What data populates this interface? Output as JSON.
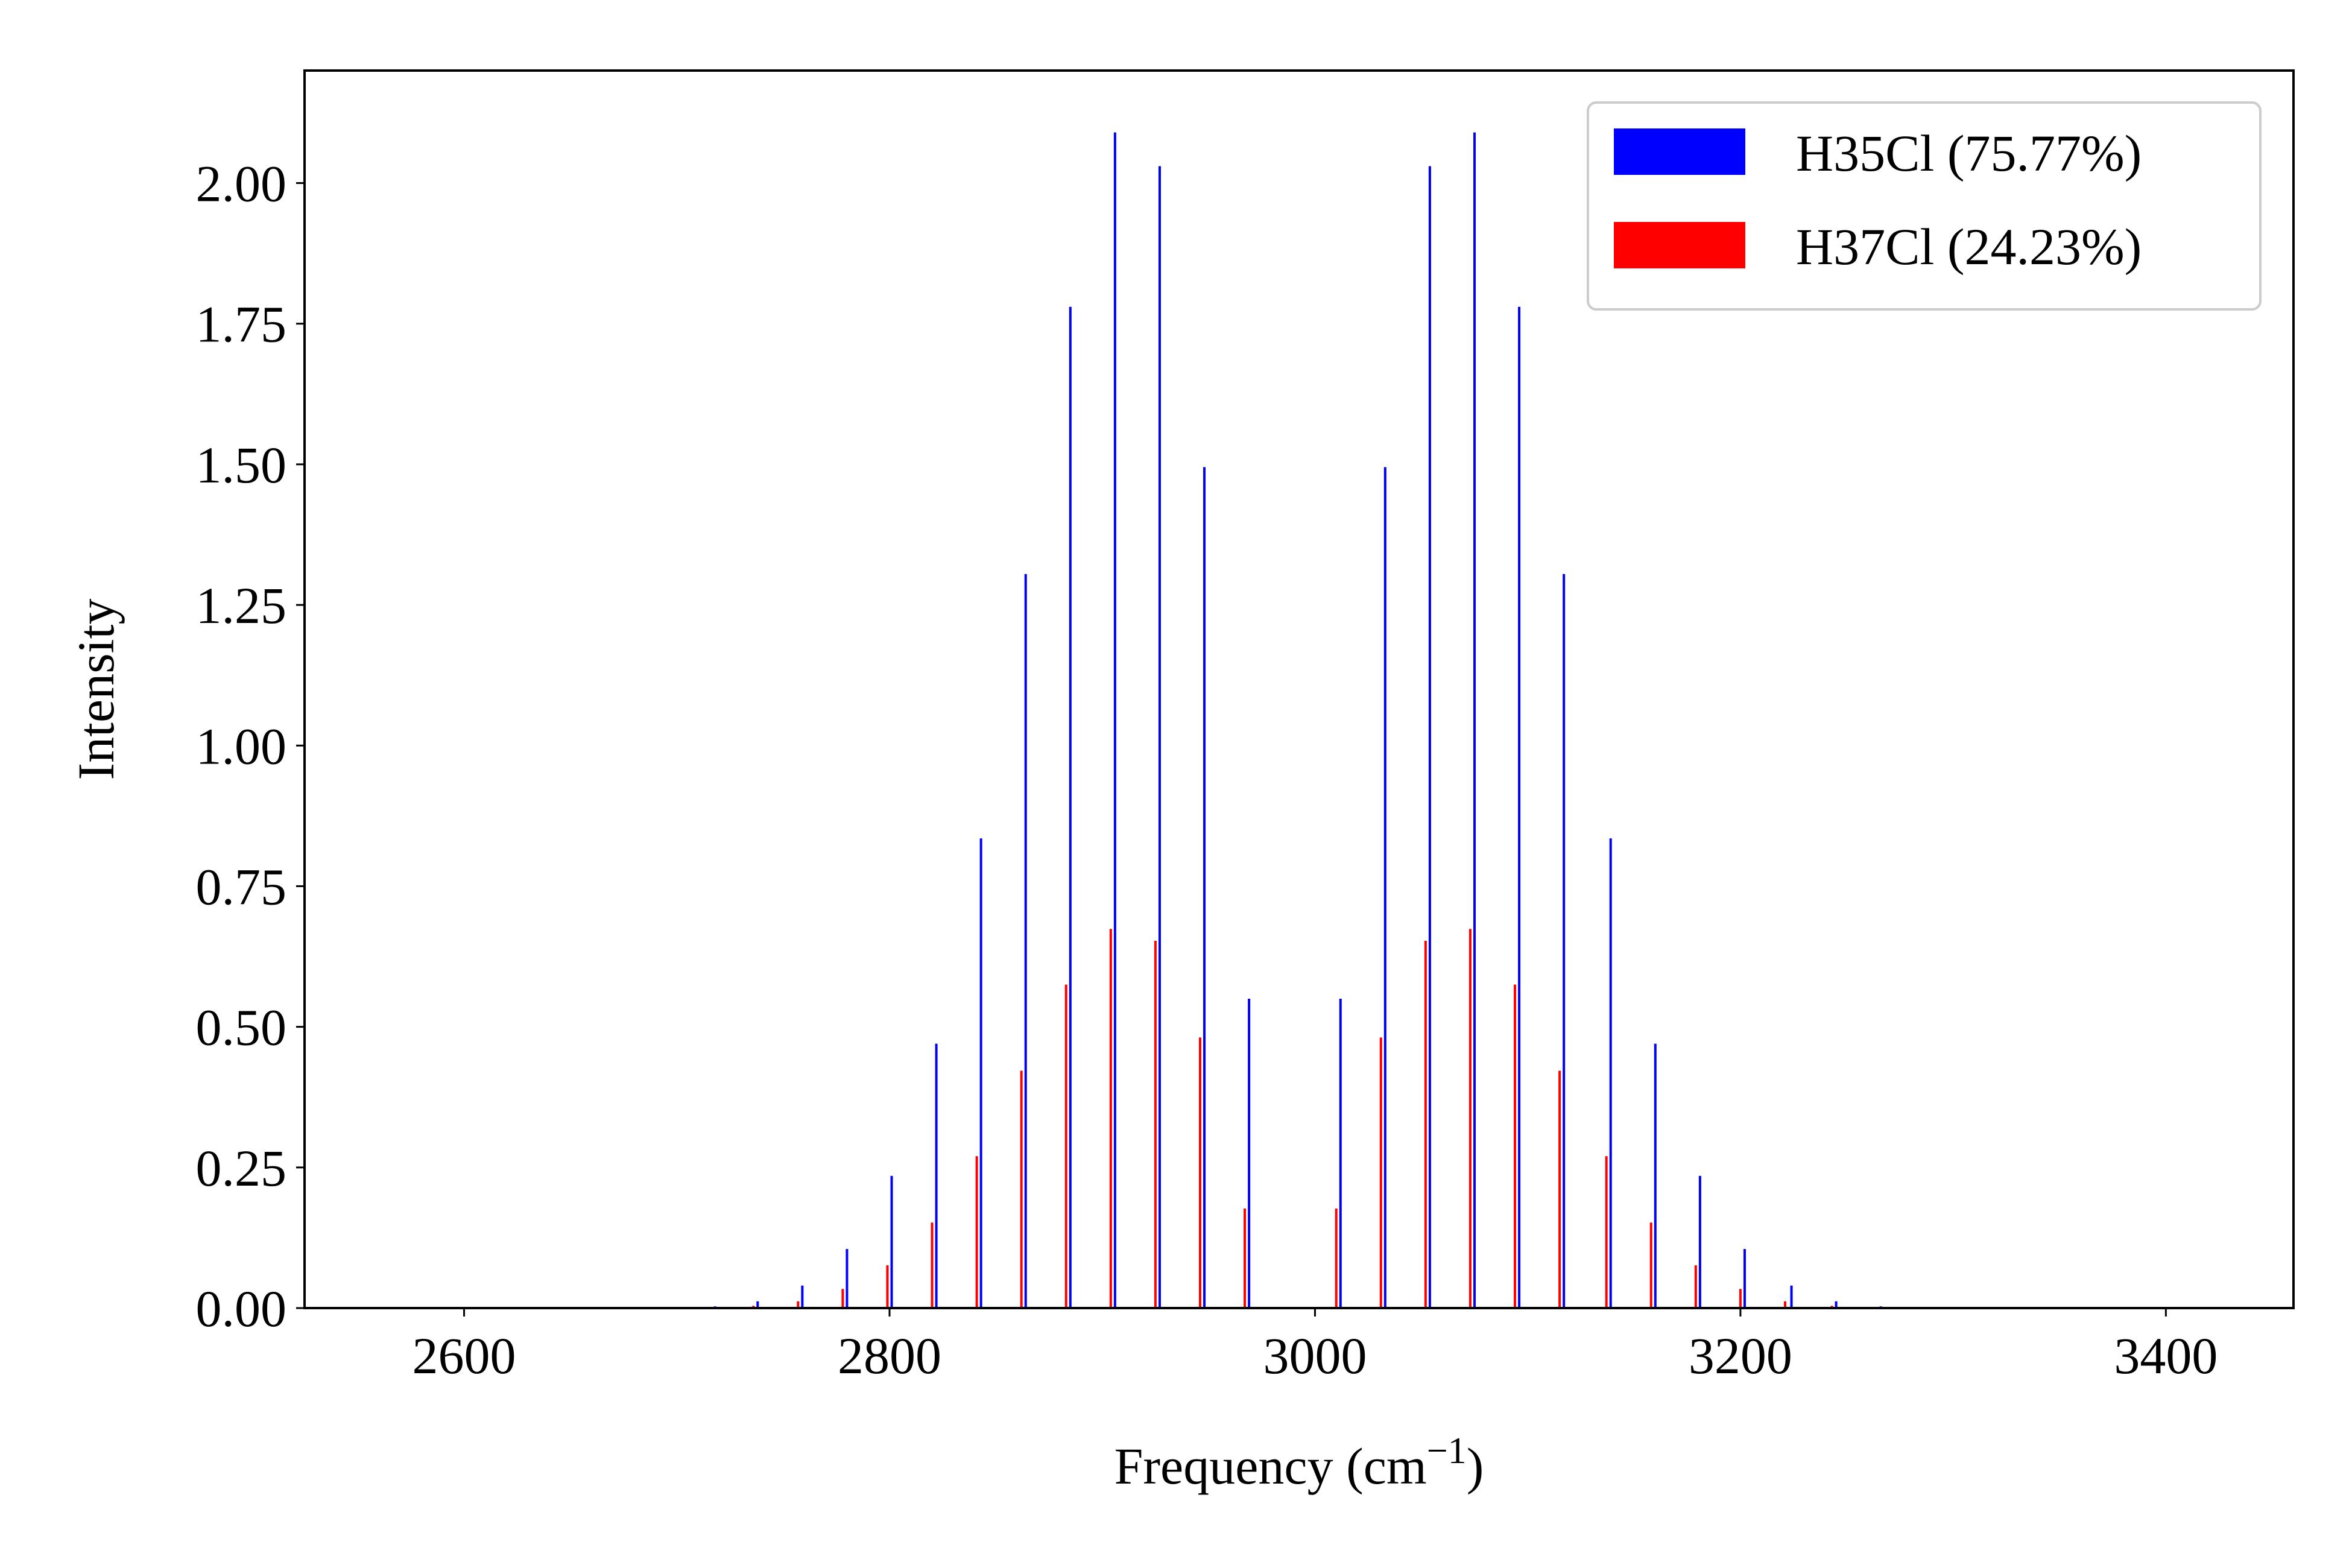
{
  "chart_data": {
    "type": "bar",
    "title": "",
    "xlabel": "Frequency (cm",
    "xlabel_sup": "−1",
    "xlabel_close": ")",
    "ylabel": "Intensity",
    "xlim": [
      2525,
      3460
    ],
    "ylim": [
      0,
      2.2
    ],
    "xticks": [
      2600,
      2800,
      3000,
      3200,
      3400
    ],
    "xtick_labels": [
      "2600",
      "2800",
      "3000",
      "3200",
      "3400"
    ],
    "yticks": [
      0,
      0.25,
      0.5,
      0.75,
      1.0,
      1.25,
      1.5,
      1.75,
      2.0
    ],
    "ytick_labels": [
      "0.00",
      "0.25",
      "0.50",
      "0.75",
      "1.00",
      "1.25",
      "1.50",
      "1.75",
      "2.00"
    ],
    "grid": false,
    "legend_position": "top-right",
    "series": [
      {
        "name": "H35Cl (75.77%)",
        "color": "#0000ff",
        "x": [
          2718,
          2738,
          2759,
          2780,
          2801,
          2822,
          2843,
          2864,
          2885,
          2906,
          2927,
          2948,
          2969,
          3012,
          3033,
          3054,
          3075,
          3096,
          3117,
          3139,
          3160,
          3181,
          3202,
          3224,
          3245,
          3266
        ],
        "y": [
          0.003,
          0.012,
          0.04,
          0.105,
          0.235,
          0.47,
          0.835,
          1.305,
          1.78,
          2.09,
          2.03,
          1.495,
          0.55,
          0.55,
          1.495,
          2.03,
          2.09,
          1.78,
          1.305,
          0.835,
          0.47,
          0.235,
          0.105,
          0.04,
          0.012,
          0.003
        ]
      },
      {
        "name": "H37Cl (24.23%)",
        "color": "#ff0000",
        "x": [
          2716,
          2736,
          2757,
          2778,
          2799,
          2820,
          2841,
          2862,
          2883,
          2904,
          2925,
          2946,
          2967,
          3010,
          3031,
          3052,
          3073,
          3094,
          3115,
          3137,
          3158,
          3179,
          3200,
          3221,
          3243,
          3264
        ],
        "y": [
          0.001,
          0.004,
          0.012,
          0.034,
          0.076,
          0.152,
          0.27,
          0.422,
          0.575,
          0.674,
          0.653,
          0.481,
          0.177,
          0.177,
          0.481,
          0.653,
          0.674,
          0.575,
          0.422,
          0.27,
          0.152,
          0.076,
          0.034,
          0.012,
          0.004,
          0.001
        ]
      }
    ]
  }
}
